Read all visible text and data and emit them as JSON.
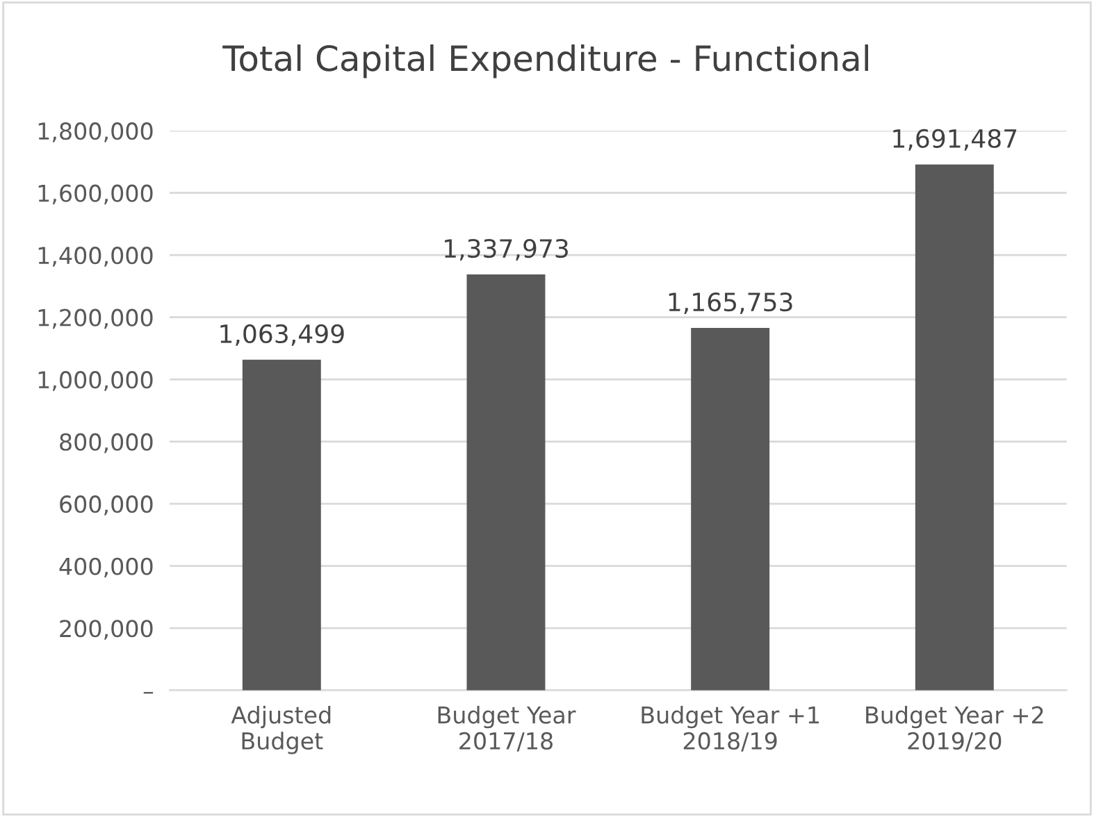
{
  "chart_data": {
    "type": "bar",
    "title": "Total Capital Expenditure - Functional",
    "categories": [
      "Adjusted\nBudget",
      "Budget Year\n2017/18",
      "Budget Year +1\n2018/19",
      "Budget Year +2\n2019/20"
    ],
    "values": [
      1063499,
      1337973,
      1165753,
      1691487
    ],
    "value_labels": [
      "1,063,499",
      "1,337,973",
      "1,165,753",
      "1,691,487"
    ],
    "color": "#595959",
    "ylim": [
      0,
      1800000
    ],
    "yticks": [
      {
        "value": 0,
        "label": "–"
      },
      {
        "value": 200000,
        "label": "200,000"
      },
      {
        "value": 400000,
        "label": "400,000"
      },
      {
        "value": 600000,
        "label": "600,000"
      },
      {
        "value": 800000,
        "label": "800,000"
      },
      {
        "value": 1000000,
        "label": "1,000,000"
      },
      {
        "value": 1200000,
        "label": "1,200,000"
      },
      {
        "value": 1400000,
        "label": "1,400,000"
      },
      {
        "value": 1600000,
        "label": "1,600,000"
      },
      {
        "value": 1800000,
        "label": "1,800,000"
      }
    ],
    "grid": "y"
  }
}
